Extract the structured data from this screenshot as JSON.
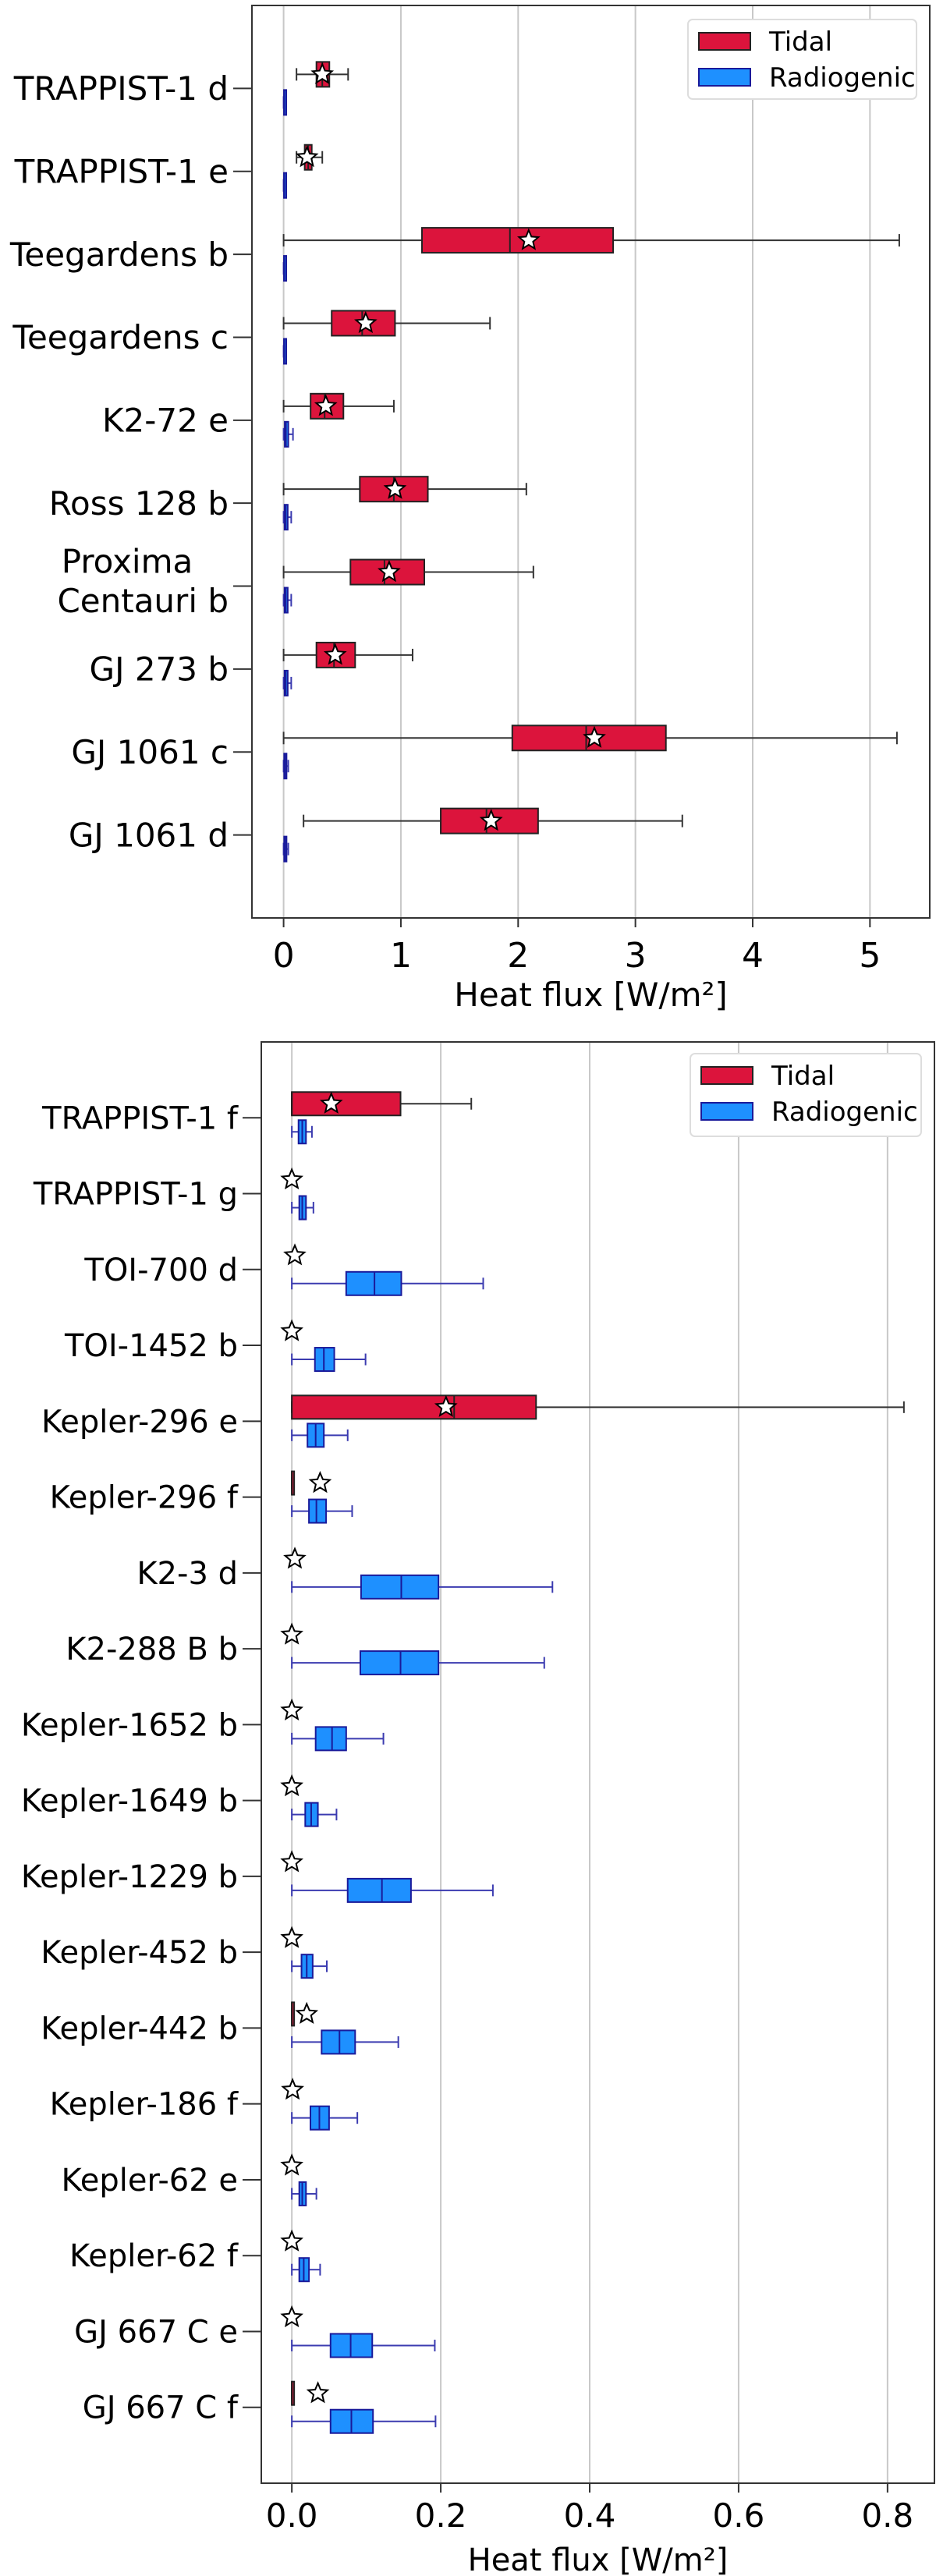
{
  "chart_data": [
    {
      "type": "box",
      "xlabel": "Heat flux [W/m²]",
      "xlim": [
        -0.27,
        5.51
      ],
      "xticks": [
        0,
        1,
        2,
        3,
        4,
        5
      ],
      "xtick_labels": [
        "0",
        "1",
        "2",
        "3",
        "4",
        "5"
      ],
      "grid": "vertical",
      "legend_placement": "top-right",
      "legend": [
        "Tidal",
        "Radiogenic"
      ],
      "categories": [
        "TRAPPIST-1 d",
        "TRAPPIST-1 e",
        "Teegardens b",
        "Teegardens c",
        "K2-72 e",
        "Ross 128 b",
        "Proxima\nCentauri b",
        "GJ 273 b",
        "GJ 1061 c",
        "GJ 1061 d"
      ],
      "series": [
        {
          "name": "Tidal",
          "color": "#dc143c",
          "edge": "#222222",
          "boxes": [
            {
              "whislo": 0.11,
              "q1": 0.28,
              "med": 0.33,
              "q3": 0.39,
              "whishi": 0.55
            },
            {
              "whislo": 0.11,
              "q1": 0.18,
              "med": 0.21,
              "q3": 0.24,
              "whishi": 0.33
            },
            {
              "whislo": 0.0,
              "q1": 1.18,
              "med": 1.93,
              "q3": 2.81,
              "whishi": 5.25
            },
            {
              "whislo": 0.0,
              "q1": 0.41,
              "med": 0.67,
              "q3": 0.95,
              "whishi": 1.76
            },
            {
              "whislo": 0.0,
              "q1": 0.23,
              "med": 0.35,
              "q3": 0.51,
              "whishi": 0.94
            },
            {
              "whislo": 0.0,
              "q1": 0.65,
              "med": 0.94,
              "q3": 1.23,
              "whishi": 2.07
            },
            {
              "whislo": 0.0,
              "q1": 0.57,
              "med": 0.86,
              "q3": 1.2,
              "whishi": 2.13
            },
            {
              "whislo": 0.0,
              "q1": 0.28,
              "med": 0.43,
              "q3": 0.61,
              "whishi": 1.1
            },
            {
              "whislo": 0.0,
              "q1": 1.95,
              "med": 2.58,
              "q3": 3.26,
              "whishi": 5.23
            },
            {
              "whislo": 0.17,
              "q1": 1.34,
              "med": 1.73,
              "q3": 2.17,
              "whishi": 3.4
            }
          ],
          "stars": [
            0.33,
            0.2,
            2.09,
            0.7,
            0.36,
            0.95,
            0.9,
            0.44,
            2.65,
            1.77
          ]
        },
        {
          "name": "Radiogenic",
          "color": "#1e90ff",
          "edge": "#1a1a9a",
          "boxes": [
            {
              "whislo": 0.0,
              "q1": 0.003,
              "med": 0.006,
              "q3": 0.012,
              "whishi": 0.02
            },
            {
              "whislo": 0.0,
              "q1": 0.003,
              "med": 0.006,
              "q3": 0.012,
              "whishi": 0.02
            },
            {
              "whislo": 0.0,
              "q1": 0.003,
              "med": 0.006,
              "q3": 0.012,
              "whishi": 0.02
            },
            {
              "whislo": 0.0,
              "q1": 0.003,
              "med": 0.006,
              "q3": 0.012,
              "whishi": 0.02
            },
            {
              "whislo": 0.0,
              "q1": 0.01,
              "med": 0.02,
              "q3": 0.04,
              "whishi": 0.08
            },
            {
              "whislo": 0.0,
              "q1": 0.008,
              "med": 0.018,
              "q3": 0.035,
              "whishi": 0.065
            },
            {
              "whislo": 0.0,
              "q1": 0.008,
              "med": 0.018,
              "q3": 0.035,
              "whishi": 0.065
            },
            {
              "whislo": 0.0,
              "q1": 0.008,
              "med": 0.018,
              "q3": 0.035,
              "whishi": 0.065
            },
            {
              "whislo": 0.0,
              "q1": 0.005,
              "med": 0.012,
              "q3": 0.022,
              "whishi": 0.04
            },
            {
              "whislo": 0.0,
              "q1": 0.005,
              "med": 0.012,
              "q3": 0.022,
              "whishi": 0.04
            }
          ]
        }
      ]
    },
    {
      "type": "box",
      "xlabel": "Heat flux [W/m²]",
      "xlim": [
        -0.041,
        0.863
      ],
      "xticks": [
        0,
        0.2,
        0.4,
        0.6,
        0.8
      ],
      "xtick_labels": [
        "0.0",
        "0.2",
        "0.4",
        "0.6",
        "0.8"
      ],
      "grid": "vertical",
      "legend_placement": "top-right",
      "legend": [
        "Tidal",
        "Radiogenic"
      ],
      "categories": [
        "TRAPPIST-1 f",
        "TRAPPIST-1 g",
        "TOI-700 d",
        "TOI-1452 b",
        "Kepler-296 e",
        "Kepler-296 f",
        "K2-3 d",
        "K2-288 B b",
        "Kepler-1652 b",
        "Kepler-1649 b",
        "Kepler-1229 b",
        "Kepler-452 b",
        "Kepler-442 b",
        "Kepler-186 f",
        "Kepler-62 e",
        "Kepler-62 f",
        "GJ 667 C e",
        "GJ 667 C f"
      ],
      "series": [
        {
          "name": "Tidal",
          "color": "#dc143c",
          "edge": "#222222",
          "boxes": [
            {
              "whislo": 0.0,
              "q1": 0.0,
              "med": 0.0,
              "q3": 0.146,
              "whishi": 0.241
            },
            null,
            null,
            null,
            {
              "whislo": 0.0,
              "q1": 0.0,
              "med": 0.218,
              "q3": 0.328,
              "whishi": 0.822
            },
            {
              "whislo": 0.0,
              "q1": 0.0,
              "med": 0.0,
              "q3": 0.0,
              "whishi": 0.0
            },
            null,
            null,
            null,
            null,
            null,
            null,
            {
              "whislo": 0.0,
              "q1": 0.0,
              "med": 0.0,
              "q3": 0.0,
              "whishi": 0.0
            },
            null,
            null,
            null,
            null,
            {
              "whislo": 0.0,
              "q1": 0.0,
              "med": 0.0,
              "q3": 0.0,
              "whishi": 0.0
            }
          ],
          "stars": [
            0.053,
            0.0,
            0.004,
            0.0,
            0.207,
            0.038,
            0.004,
            0.0,
            0.0,
            0.0,
            0.0,
            0.0,
            0.02,
            0.001,
            0.0,
            0.0,
            0.0,
            0.035
          ]
        },
        {
          "name": "Radiogenic",
          "color": "#1e90ff",
          "edge": "#1a1a9a",
          "boxes": [
            {
              "whislo": 0.0,
              "q1": 0.009,
              "med": 0.014,
              "q3": 0.019,
              "whishi": 0.027
            },
            {
              "whislo": 0.0,
              "q1": 0.01,
              "med": 0.014,
              "q3": 0.019,
              "whishi": 0.029
            },
            {
              "whislo": 0.0,
              "q1": 0.073,
              "med": 0.111,
              "q3": 0.147,
              "whishi": 0.257
            },
            {
              "whislo": 0.0,
              "q1": 0.031,
              "med": 0.043,
              "q3": 0.057,
              "whishi": 0.099
            },
            {
              "whislo": 0.0,
              "q1": 0.021,
              "med": 0.032,
              "q3": 0.043,
              "whishi": 0.075
            },
            {
              "whislo": 0.0,
              "q1": 0.023,
              "med": 0.033,
              "q3": 0.046,
              "whishi": 0.081
            },
            {
              "whislo": 0.0,
              "q1": 0.093,
              "med": 0.147,
              "q3": 0.197,
              "whishi": 0.35
            },
            {
              "whislo": 0.0,
              "q1": 0.092,
              "med": 0.146,
              "q3": 0.197,
              "whishi": 0.339
            },
            {
              "whislo": 0.0,
              "q1": 0.032,
              "med": 0.054,
              "q3": 0.073,
              "whishi": 0.123
            },
            {
              "whislo": 0.0,
              "q1": 0.018,
              "med": 0.026,
              "q3": 0.035,
              "whishi": 0.06
            },
            {
              "whislo": 0.0,
              "q1": 0.075,
              "med": 0.121,
              "q3": 0.16,
              "whishi": 0.27
            },
            {
              "whislo": 0.0,
              "q1": 0.013,
              "med": 0.02,
              "q3": 0.028,
              "whishi": 0.047
            },
            {
              "whislo": 0.0,
              "q1": 0.04,
              "med": 0.064,
              "q3": 0.085,
              "whishi": 0.143
            },
            {
              "whislo": 0.0,
              "q1": 0.025,
              "med": 0.037,
              "q3": 0.05,
              "whishi": 0.088
            },
            {
              "whislo": 0.0,
              "q1": 0.01,
              "med": 0.014,
              "q3": 0.019,
              "whishi": 0.033
            },
            {
              "whislo": 0.0,
              "q1": 0.01,
              "med": 0.016,
              "q3": 0.023,
              "whishi": 0.038
            },
            {
              "whislo": 0.0,
              "q1": 0.052,
              "med": 0.079,
              "q3": 0.108,
              "whishi": 0.192
            },
            {
              "whislo": 0.0,
              "q1": 0.052,
              "med": 0.08,
              "q3": 0.109,
              "whishi": 0.193
            }
          ]
        }
      ]
    }
  ]
}
